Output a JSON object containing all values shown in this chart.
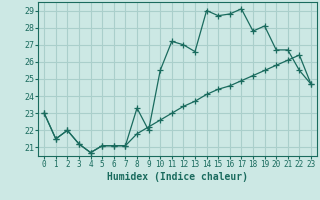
{
  "xlabel": "Humidex (Indice chaleur)",
  "background_color": "#cce8e4",
  "line_color": "#1a6b5e",
  "grid_color": "#aacfcb",
  "xlim": [
    -0.5,
    23.5
  ],
  "ylim": [
    20.5,
    29.5
  ],
  "yticks": [
    21,
    22,
    23,
    24,
    25,
    26,
    27,
    28,
    29
  ],
  "xticks": [
    0,
    1,
    2,
    3,
    4,
    5,
    6,
    7,
    8,
    9,
    10,
    11,
    12,
    13,
    14,
    15,
    16,
    17,
    18,
    19,
    20,
    21,
    22,
    23
  ],
  "line1_x": [
    0,
    1,
    2,
    3,
    4,
    5,
    6,
    7,
    8,
    9,
    10,
    11,
    12,
    13,
    14,
    15,
    16,
    17,
    18,
    19,
    20,
    21,
    22,
    23
  ],
  "line1_y": [
    23,
    21.5,
    22,
    21.2,
    20.7,
    21.1,
    21.1,
    21.1,
    23.3,
    22.0,
    25.5,
    27.2,
    27.0,
    26.6,
    29.0,
    28.7,
    28.8,
    29.1,
    27.8,
    28.1,
    26.7,
    26.7,
    25.5,
    24.7
  ],
  "line2_x": [
    0,
    1,
    2,
    3,
    4,
    5,
    6,
    7,
    8,
    9,
    10,
    11,
    12,
    13,
    14,
    15,
    16,
    17,
    18,
    19,
    20,
    21,
    22,
    23
  ],
  "line2_y": [
    23,
    21.5,
    22,
    21.2,
    20.7,
    21.1,
    21.1,
    21.1,
    21.8,
    22.2,
    22.6,
    23.0,
    23.4,
    23.7,
    24.1,
    24.4,
    24.6,
    24.9,
    25.2,
    25.5,
    25.8,
    26.1,
    26.4,
    24.7
  ],
  "marker_size": 4,
  "marker": "+"
}
